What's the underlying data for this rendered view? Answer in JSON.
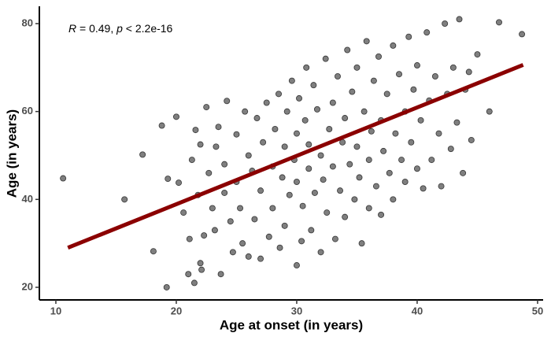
{
  "chart_data": {
    "type": "scatter",
    "x_label": "Age at onset (in years)",
    "y_label": "Age (in years)",
    "annotation": [
      {
        "text": "R",
        "italic": true
      },
      {
        "text": " = 0.49, ",
        "italic": false
      },
      {
        "text": "p",
        "italic": true
      },
      {
        "text": " < 2.2e-16",
        "italic": false
      }
    ],
    "xlim": [
      8.63,
      50.46
    ],
    "xticks": [
      10,
      20,
      30,
      40,
      50
    ],
    "ylim": [
      17.13,
      83.94
    ],
    "yticks": [
      20,
      40,
      60,
      80
    ],
    "color": "#000000",
    "alpha": 0.5,
    "x": [
      10.6,
      15.7,
      17.2,
      18.1,
      18.8,
      19.2,
      19.3,
      20,
      20.2,
      20.6,
      21,
      21.1,
      21.3,
      21.5,
      21.6,
      21.8,
      22,
      22,
      22.1,
      22.3,
      22.5,
      22.7,
      23,
      23.2,
      23.3,
      23.5,
      23.7,
      24,
      24,
      24.2,
      24.5,
      24.7,
      25,
      25,
      25.3,
      25.5,
      25.7,
      26,
      26,
      26.3,
      26.5,
      26.7,
      27,
      27,
      27.2,
      27.5,
      27.7,
      28,
      28,
      28.2,
      28.5,
      28.6,
      28.8,
      29,
      29,
      29.2,
      29.4,
      29.6,
      29.8,
      30,
      30,
      30,
      30.2,
      30.4,
      30.5,
      30.7,
      30.8,
      31,
      31,
      31.2,
      31.4,
      31.5,
      31.7,
      32,
      32,
      32.2,
      32.4,
      32.5,
      32.7,
      33,
      33,
      33.2,
      33.4,
      33.6,
      33.8,
      34,
      34,
      34.2,
      34.4,
      34.6,
      34.8,
      35,
      35,
      35.2,
      35.4,
      35.6,
      35.8,
      36,
      36,
      36.2,
      36.4,
      36.6,
      36.8,
      37,
      37,
      37.2,
      37.5,
      37.7,
      38,
      38,
      38.2,
      38.5,
      38.7,
      39,
      39,
      39.3,
      39.5,
      39.7,
      40,
      40,
      40.3,
      40.5,
      40.8,
      41,
      41.2,
      41.5,
      41.8,
      42,
      42.3,
      42.5,
      42.8,
      43,
      43.3,
      43.5,
      43.8,
      44,
      44.3,
      44.5,
      45,
      46,
      46.8,
      48.7
    ],
    "values": [
      44.8,
      40,
      50.2,
      28.2,
      56.8,
      20,
      44.7,
      58.8,
      43.8,
      37,
      23,
      31,
      49,
      21,
      55.8,
      41,
      52.5,
      25.5,
      24,
      31.8,
      61,
      46,
      38,
      33,
      52,
      56.5,
      23,
      48,
      41.5,
      62.4,
      35,
      28,
      54.8,
      44,
      38,
      30,
      60,
      27,
      50,
      46.5,
      35.5,
      58.5,
      26.5,
      42,
      53,
      62,
      31.5,
      47.5,
      38,
      56,
      64,
      29,
      45,
      52,
      34,
      60,
      41,
      67,
      49,
      25,
      55,
      44,
      63,
      30.5,
      38.5,
      58,
      70,
      47,
      52.5,
      33,
      66,
      41.5,
      60.5,
      28,
      50,
      44.5,
      72,
      37,
      56,
      62,
      47.5,
      31,
      68,
      42,
      53,
      58.5,
      36,
      74,
      48,
      64.5,
      40,
      52,
      70,
      45,
      30,
      60,
      76,
      49,
      38,
      55.5,
      67,
      43,
      72.5,
      58,
      36.5,
      51,
      64,
      46,
      75,
      40,
      55,
      68.5,
      49,
      60,
      44,
      77,
      53,
      65,
      47,
      70.5,
      58,
      42.5,
      78,
      62.5,
      49,
      68,
      55,
      43,
      80,
      64,
      51.5,
      70,
      57.5,
      81,
      46,
      65,
      69,
      53.5,
      73,
      60,
      80.3,
      77.6
    ],
    "fit": {
      "x": [
        11,
        48.8
      ],
      "values": [
        29,
        70.6
      ],
      "color": "#8b0000"
    }
  }
}
